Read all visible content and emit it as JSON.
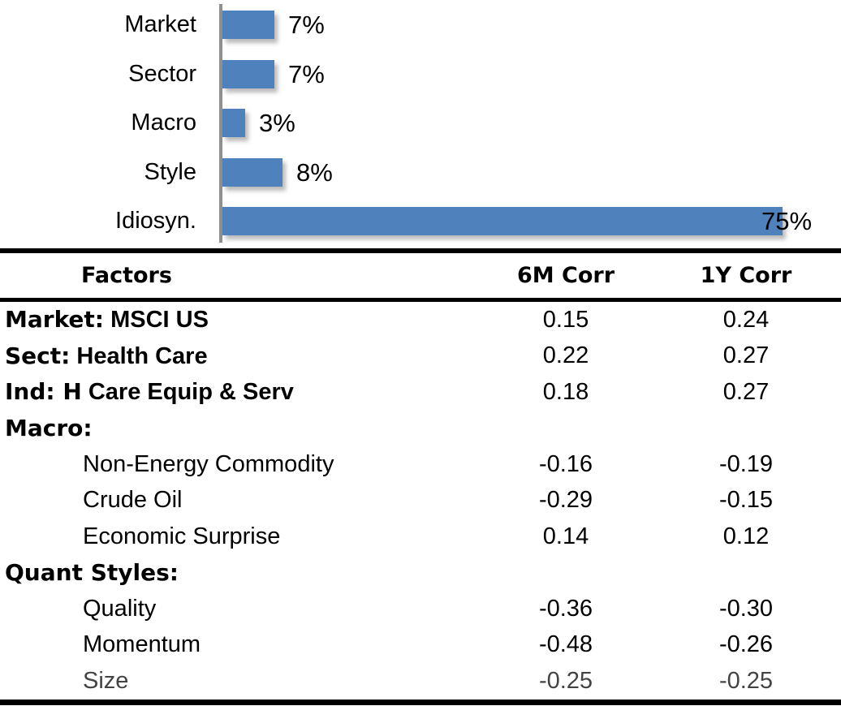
{
  "chart_data": {
    "type": "bar",
    "orientation": "horizontal",
    "title": "",
    "categories": [
      "Market",
      "Sector",
      "Macro",
      "Style",
      "Idiosyn."
    ],
    "values": [
      7,
      7,
      3,
      8,
      75
    ],
    "data_labels": [
      "7%",
      "7%",
      "3%",
      "8%",
      "75%"
    ],
    "xlim": [
      0,
      75
    ],
    "grid": false,
    "legend": false,
    "bar_color": "#4f81bd",
    "axis_color": "#8f8f8f"
  },
  "table": {
    "columns": [
      "Factors",
      "6M Corr",
      "1Y Corr"
    ],
    "rows": [
      {
        "type": "group",
        "prefix": "Market:",
        "label": " MSCI US",
        "six_m": "0.15",
        "one_y": "0.24"
      },
      {
        "type": "group",
        "prefix": "Sect:",
        "label": " Health Care",
        "six_m": "0.22",
        "one_y": "0.27"
      },
      {
        "type": "group",
        "prefix": "Ind: H",
        "label": " Care Equip & Serv",
        "six_m": "0.18",
        "one_y": "0.27"
      },
      {
        "type": "group",
        "prefix": "Macro:",
        "label": "",
        "six_m": "",
        "one_y": ""
      },
      {
        "type": "sub",
        "label": "Non-Energy Commodity",
        "six_m": "-0.16",
        "one_y": "-0.19"
      },
      {
        "type": "sub",
        "label": "Crude Oil",
        "six_m": "-0.29",
        "one_y": "-0.15"
      },
      {
        "type": "sub",
        "label": "Economic Surprise",
        "six_m": "0.14",
        "one_y": "0.12"
      },
      {
        "type": "group",
        "prefix": "Quant Styles:",
        "label": "",
        "six_m": "",
        "one_y": ""
      },
      {
        "type": "sub",
        "label": "Quality",
        "six_m": "-0.36",
        "one_y": "-0.30"
      },
      {
        "type": "sub",
        "label": "Momentum",
        "six_m": "-0.48",
        "one_y": "-0.26"
      },
      {
        "type": "sub",
        "label": "Size",
        "muted": true,
        "six_m": "-0.25",
        "one_y": "-0.25"
      }
    ]
  }
}
